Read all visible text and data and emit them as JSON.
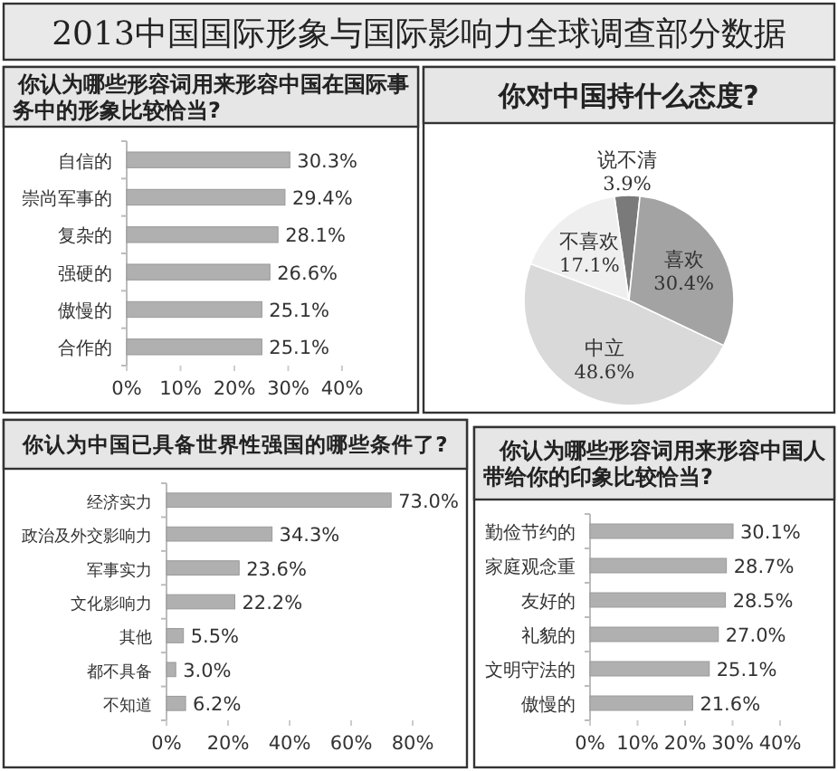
{
  "chart_data": [
    {
      "type": "other",
      "title": "2013中国国际形象与国际影响力全球调查部分数据"
    },
    {
      "type": "bar",
      "orientation": "horizontal",
      "title": "你认为哪些形容词用来形容中国在国际事务中的形象比较恰当?",
      "categories": [
        "自信的",
        "崇尚军事的",
        "复杂的",
        "强硬的",
        "傲慢的",
        "合作的"
      ],
      "values": [
        30.3,
        29.4,
        28.1,
        26.6,
        25.1,
        25.1
      ],
      "value_labels": [
        "30.3%",
        "29.4%",
        "28.1%",
        "26.6%",
        "25.1%",
        "25.1%"
      ],
      "color": "#b0b0b0",
      "xlim": [
        0,
        40
      ],
      "xticks": [
        {
          "value": 0,
          "label": "0%"
        },
        {
          "value": 10,
          "label": "10%"
        },
        {
          "value": 20,
          "label": "20%"
        },
        {
          "value": 30,
          "label": "30%"
        },
        {
          "value": 40,
          "label": "40%"
        }
      ]
    },
    {
      "type": "pie",
      "title": "你对中国持什么态度?",
      "categories": [
        "说不清",
        "喜欢",
        "中立",
        "不喜欢"
      ],
      "values": [
        3.9,
        30.4,
        48.6,
        17.1
      ],
      "value_labels": [
        "3.9%",
        "30.4%",
        "48.6%",
        "17.1%"
      ],
      "colors": [
        "#7a7a7a",
        "#a3a3a3",
        "#d9d9d9",
        "#efefef"
      ]
    },
    {
      "type": "bar",
      "orientation": "horizontal",
      "title": "你认为中国已具备世界性强国的哪些条件了?",
      "categories": [
        "经济实力",
        "政治及外交影响力",
        "军事实力",
        "文化影响力",
        "其他",
        "都不具备",
        "不知道"
      ],
      "values": [
        73.0,
        34.3,
        23.6,
        22.2,
        5.5,
        3.0,
        6.2
      ],
      "value_labels": [
        "73.0%",
        "34.3%",
        "23.6%",
        "22.2%",
        "5.5%",
        "3.0%",
        "6.2%"
      ],
      "color": "#b0b0b0",
      "xlim": [
        0,
        80
      ],
      "xticks": [
        {
          "value": 0,
          "label": "0%"
        },
        {
          "value": 20,
          "label": "20%"
        },
        {
          "value": 40,
          "label": "40%"
        },
        {
          "value": 60,
          "label": "60%"
        },
        {
          "value": 80,
          "label": "80%"
        }
      ]
    },
    {
      "type": "bar",
      "orientation": "horizontal",
      "title": "你认为哪些形容词用来形容中国人带给你的印象比较恰当?",
      "categories": [
        "勤俭节约的",
        "家庭观念重",
        "友好的",
        "礼貌的",
        "文明守法的",
        "傲慢的"
      ],
      "values": [
        30.1,
        28.7,
        28.5,
        27.0,
        25.1,
        21.6
      ],
      "value_labels": [
        "30.1%",
        "28.7%",
        "28.5%",
        "27.0%",
        "25.1%",
        "21.6%"
      ],
      "color": "#b0b0b0",
      "xlim": [
        0,
        40
      ],
      "xticks": [
        {
          "value": 0,
          "label": "0%"
        },
        {
          "value": 10,
          "label": "10%"
        },
        {
          "value": 20,
          "label": "20%"
        },
        {
          "value": 30,
          "label": "30%"
        },
        {
          "value": 40,
          "label": "40%"
        }
      ]
    }
  ]
}
